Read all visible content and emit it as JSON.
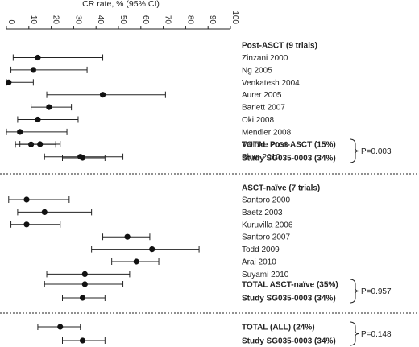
{
  "chart_data": {
    "type": "forest",
    "xlabel": "CR rate, % (95% CI)",
    "xlim": [
      0,
      100
    ],
    "xticks": [
      0,
      10,
      20,
      30,
      40,
      50,
      60,
      70,
      80,
      90,
      100
    ],
    "sections": [
      {
        "header": "Post-ASCT (9 trials)",
        "rows": [
          {
            "label": "Zinzani 2000",
            "est": 14,
            "low": 3,
            "high": 43,
            "bold": false
          },
          {
            "label": "Ng 2005",
            "est": 12,
            "low": 2,
            "high": 36,
            "bold": false
          },
          {
            "label": "Venkatesh 2004",
            "est": 1,
            "low": 0,
            "high": 12,
            "bold": false
          },
          {
            "label": "Aurer 2005",
            "est": 43,
            "low": 18,
            "high": 71,
            "bold": false
          },
          {
            "label": "Barlett 2007",
            "est": 19,
            "low": 11,
            "high": 29,
            "bold": false
          },
          {
            "label": "Oki 2008",
            "est": 14,
            "low": 5,
            "high": 32,
            "bold": false
          },
          {
            "label": "Mendler 2008",
            "est": 6,
            "low": 0,
            "high": 27,
            "bold": false
          },
          {
            "label": "Validire 2008",
            "est": 11,
            "low": 4,
            "high": 22,
            "bold": false
          },
          {
            "label": "Blum 2010",
            "est": 33,
            "low": 17,
            "high": 52,
            "bold": false
          }
        ],
        "totals": [
          {
            "label": "TOTAL Post-ASCT (15%)",
            "est": 15,
            "low": 6,
            "high": 24,
            "bold": true
          },
          {
            "label": "Study SG035-0003 (34%)",
            "est": 34,
            "low": 25,
            "high": 44,
            "bold": true
          }
        ],
        "p_value": "P=0.003"
      },
      {
        "header": "ASCT-naïve (7 trials)",
        "rows": [
          {
            "label": "Santoro 2000",
            "est": 9,
            "low": 1,
            "high": 28,
            "bold": false
          },
          {
            "label": "Baetz 2003",
            "est": 17,
            "low": 5,
            "high": 38,
            "bold": false
          },
          {
            "label": "Kuruvilla 2006",
            "est": 9,
            "low": 2,
            "high": 24,
            "bold": false
          },
          {
            "label": "Santoro 2007",
            "est": 54,
            "low": 43,
            "high": 64,
            "bold": false
          },
          {
            "label": "Todd 2009",
            "est": 65,
            "low": 38,
            "high": 86,
            "bold": false
          },
          {
            "label": "Arai 2010",
            "est": 58,
            "low": 47,
            "high": 68,
            "bold": false
          },
          {
            "label": "Suyami 2010",
            "est": 35,
            "low": 18,
            "high": 55,
            "bold": false
          }
        ],
        "totals": [
          {
            "label": "TOTAL ASCT-naïve (35%)",
            "est": 35,
            "low": 17,
            "high": 52,
            "bold": true
          },
          {
            "label": "Study SG035-0003 (34%)",
            "est": 34,
            "low": 25,
            "high": 44,
            "bold": true
          }
        ],
        "p_value": "P=0.957"
      },
      {
        "header": "",
        "rows": [],
        "totals": [
          {
            "label": "TOTAL (ALL) (24%)",
            "est": 24,
            "low": 14,
            "high": 33,
            "bold": true
          },
          {
            "label": "Study SG035-0003 (34%)",
            "est": 34,
            "low": 25,
            "high": 44,
            "bold": true
          }
        ],
        "p_value": "P=0.148"
      }
    ]
  }
}
